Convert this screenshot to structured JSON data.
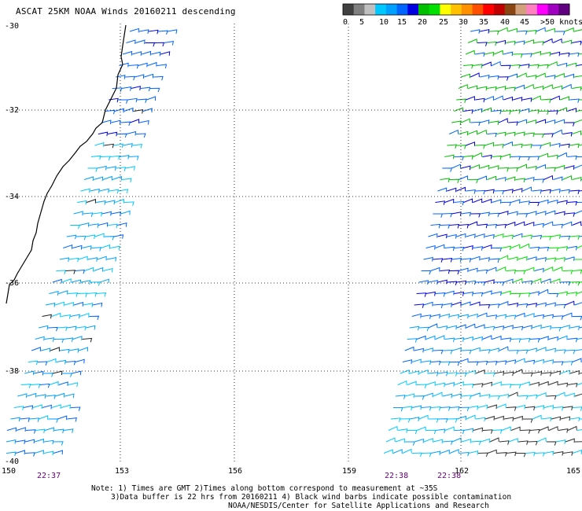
{
  "title": "ASCAT 25KM NOAA Winds 20160211 descending",
  "colorbar": {
    "colors": [
      "#404040",
      "#808080",
      "#c0c0c0",
      "#00c8ff",
      "#00a0ff",
      "#0064ff",
      "#0000e0",
      "#00c000",
      "#00e000",
      "#ffff00",
      "#ffc000",
      "#ff9000",
      "#ff5000",
      "#ff0000",
      "#c00000",
      "#8b4513",
      "#d2a07a",
      "#ff80c0",
      "#ff00ff",
      "#a000c0",
      "#600080"
    ],
    "labels": [
      "0",
      "5",
      "10",
      "15",
      "20",
      "25",
      "30",
      "35",
      "40",
      "45",
      ">50 knots"
    ],
    "unit": "knots"
  },
  "axes": {
    "lat_labels": [
      "-30",
      "-32",
      "-34",
      "-36",
      "-38",
      "-40"
    ],
    "lon_labels": [
      "150",
      "153",
      "156",
      "159",
      "162",
      "165"
    ]
  },
  "times": [
    "22:37",
    "22:38",
    "22:38"
  ],
  "notes": {
    "line1": "Note: 1) Times are GMT 2)Times along bottom correspond to measurement at ~35S",
    "line2": "3)Data buffer is 22 hrs from 20160211 4) Black wind barbs indicate possible contamination",
    "line3": "NOAA/NESDIS/Center for Satellite Applications and Research"
  }
}
